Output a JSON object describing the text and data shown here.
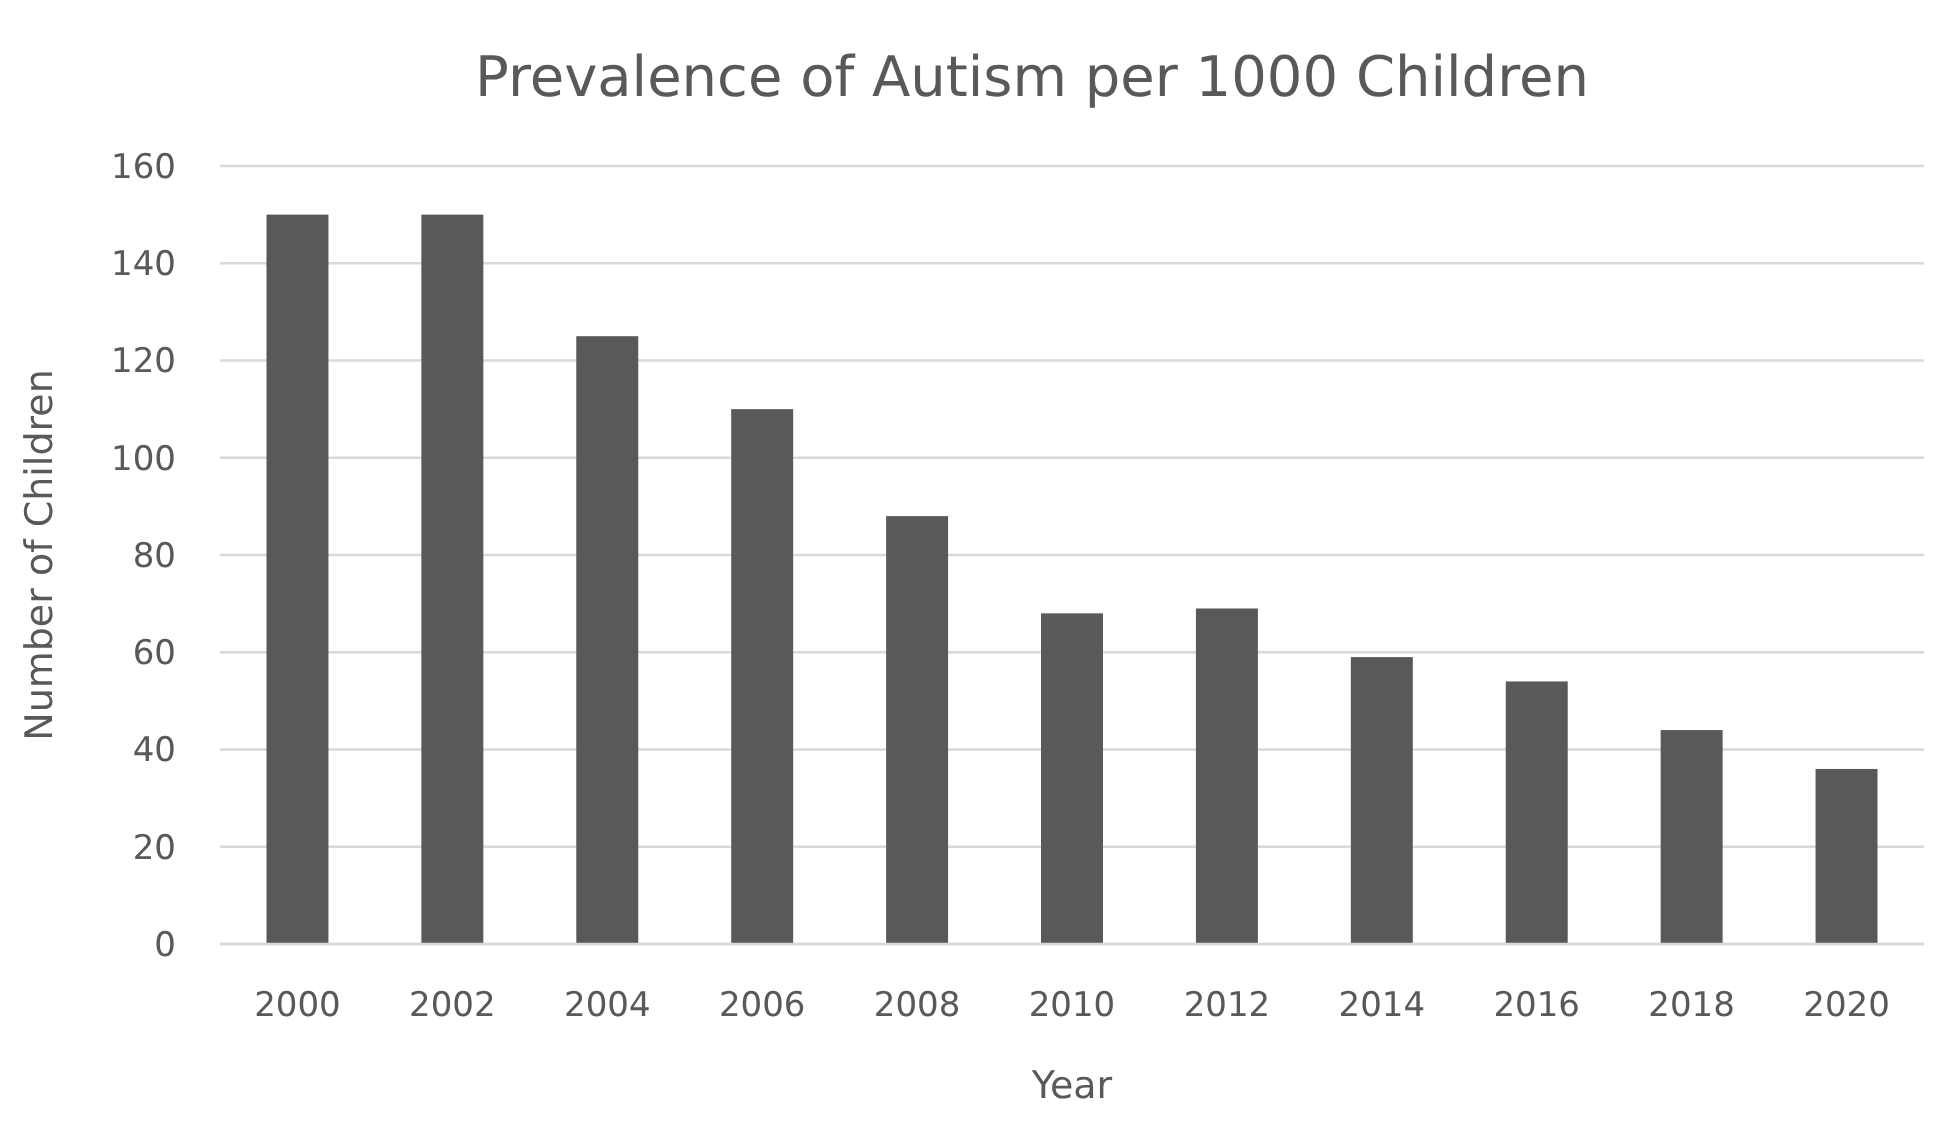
{
  "chart_data": {
    "type": "bar",
    "title": "Prevalence of Autism per 1000 Children",
    "xlabel": "Year",
    "ylabel": "Number of Children",
    "categories": [
      "2000",
      "2002",
      "2004",
      "2006",
      "2008",
      "2010",
      "2012",
      "2014",
      "2016",
      "2018",
      "2020"
    ],
    "values": [
      150,
      150,
      125,
      110,
      88,
      68,
      69,
      59,
      54,
      44,
      36
    ],
    "color": "#595959",
    "ylim": [
      0,
      160
    ],
    "yticks": [
      0,
      20,
      40,
      60,
      80,
      100,
      120,
      140,
      160
    ],
    "grid": "y"
  }
}
